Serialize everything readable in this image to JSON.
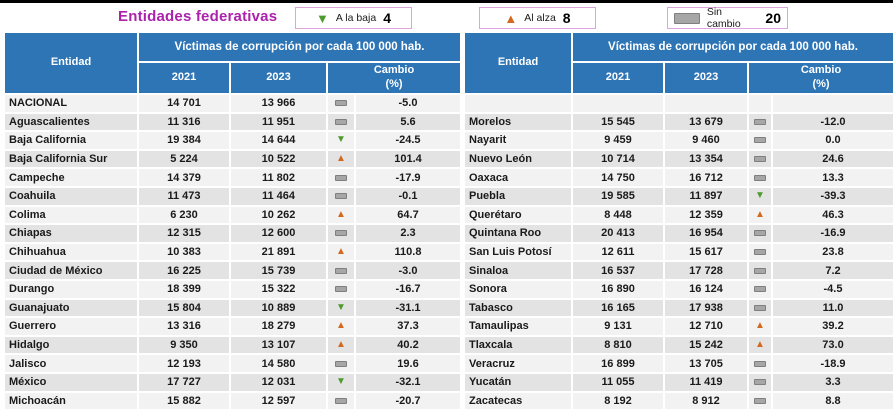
{
  "page": {
    "title": "Entidades federativas"
  },
  "legend": [
    {
      "name": "a-la-baja",
      "label": "A la baja",
      "count": "4",
      "icon": "down-triangle-icon",
      "color": "#4E9B2D"
    },
    {
      "name": "al-alza",
      "label": "Al alza",
      "count": "8",
      "icon": "up-triangle-icon",
      "color": "#D2691E"
    },
    {
      "name": "sin-cambio",
      "label": "Sin cambio",
      "count": "20",
      "icon": "gray-bar-icon",
      "color": "#A6A6A6"
    }
  ],
  "table_header": {
    "entity": "Entidad",
    "group": "Víctimas de corrupción por cada 100 000 hab.",
    "col_2021": "2021",
    "col_2023": "2023",
    "col_change": "Cambio\n(%)"
  },
  "icons": {
    "down": "▼",
    "up": "▲"
  },
  "colors": {
    "header_blue": "#2E75B6",
    "title_magenta": "#AB22AB",
    "down_green": "#4E9B2D",
    "up_orange": "#D2691E",
    "nochange_gray": "#A6A6A6",
    "row_odd": "#F2F2F2",
    "row_even": "#E3E3E3",
    "legend_border": "#DCA6DC"
  },
  "chart_data": {
    "type": "table",
    "title": "Entidades federativas",
    "group_header": "Víctimas de corrupción por cada 100 000 hab.",
    "columns": [
      "Entidad",
      "2021",
      "2023",
      "Cambio (%)"
    ],
    "legend_counts": {
      "a_la_baja": 4,
      "al_alza": 8,
      "sin_cambio": 20
    },
    "left_rows": [
      {
        "entity": "NACIONAL",
        "y2021": "14 701",
        "y2023": "13 966",
        "trend": "same",
        "change": "-5.0"
      },
      {
        "entity": "Aguascalientes",
        "y2021": "11 316",
        "y2023": "11 951",
        "trend": "same",
        "change": "5.6"
      },
      {
        "entity": "Baja California",
        "y2021": "19 384",
        "y2023": "14 644",
        "trend": "down",
        "change": "-24.5"
      },
      {
        "entity": "Baja California Sur",
        "y2021": "5 224",
        "y2023": "10 522",
        "trend": "up",
        "change": "101.4"
      },
      {
        "entity": "Campeche",
        "y2021": "14 379",
        "y2023": "11 802",
        "trend": "same",
        "change": "-17.9"
      },
      {
        "entity": "Coahuila",
        "y2021": "11 473",
        "y2023": "11 464",
        "trend": "same",
        "change": "-0.1"
      },
      {
        "entity": "Colima",
        "y2021": "6 230",
        "y2023": "10 262",
        "trend": "up",
        "change": "64.7"
      },
      {
        "entity": "Chiapas",
        "y2021": "12 315",
        "y2023": "12 600",
        "trend": "same",
        "change": "2.3"
      },
      {
        "entity": "Chihuahua",
        "y2021": "10 383",
        "y2023": "21 891",
        "trend": "up",
        "change": "110.8"
      },
      {
        "entity": "Ciudad de México",
        "y2021": "16 225",
        "y2023": "15 739",
        "trend": "same",
        "change": "-3.0"
      },
      {
        "entity": "Durango",
        "y2021": "18 399",
        "y2023": "15 322",
        "trend": "same",
        "change": "-16.7"
      },
      {
        "entity": "Guanajuato",
        "y2021": "15 804",
        "y2023": "10 889",
        "trend": "down",
        "change": "-31.1"
      },
      {
        "entity": "Guerrero",
        "y2021": "13 316",
        "y2023": "18 279",
        "trend": "up",
        "change": "37.3"
      },
      {
        "entity": "Hidalgo",
        "y2021": "9 350",
        "y2023": "13 107",
        "trend": "up",
        "change": "40.2"
      },
      {
        "entity": "Jalisco",
        "y2021": "12 193",
        "y2023": "14 580",
        "trend": "same",
        "change": "19.6"
      },
      {
        "entity": "México",
        "y2021": "17 727",
        "y2023": "12 031",
        "trend": "down",
        "change": "-32.1"
      },
      {
        "entity": "Michoacán",
        "y2021": "15 882",
        "y2023": "12 597",
        "trend": "same",
        "change": "-20.7"
      }
    ],
    "right_rows": [
      {
        "entity": "",
        "y2021": "",
        "y2023": "",
        "trend": "none",
        "change": ""
      },
      {
        "entity": "Morelos",
        "y2021": "15 545",
        "y2023": "13 679",
        "trend": "same",
        "change": "-12.0"
      },
      {
        "entity": "Nayarit",
        "y2021": "9 459",
        "y2023": "9 460",
        "trend": "same",
        "change": "0.0"
      },
      {
        "entity": "Nuevo León",
        "y2021": "10 714",
        "y2023": "13 354",
        "trend": "same",
        "change": "24.6"
      },
      {
        "entity": "Oaxaca",
        "y2021": "14 750",
        "y2023": "16 712",
        "trend": "same",
        "change": "13.3"
      },
      {
        "entity": "Puebla",
        "y2021": "19 585",
        "y2023": "11 897",
        "trend": "down",
        "change": "-39.3"
      },
      {
        "entity": "Querétaro",
        "y2021": "8 448",
        "y2023": "12 359",
        "trend": "up",
        "change": "46.3"
      },
      {
        "entity": "Quintana Roo",
        "y2021": "20 413",
        "y2023": "16 954",
        "trend": "same",
        "change": "-16.9"
      },
      {
        "entity": "San Luis Potosí",
        "y2021": "12 611",
        "y2023": "15 617",
        "trend": "same",
        "change": "23.8"
      },
      {
        "entity": "Sinaloa",
        "y2021": "16 537",
        "y2023": "17 728",
        "trend": "same",
        "change": "7.2"
      },
      {
        "entity": "Sonora",
        "y2021": "16 890",
        "y2023": "16 124",
        "trend": "same",
        "change": "-4.5"
      },
      {
        "entity": "Tabasco",
        "y2021": "16 165",
        "y2023": "17 938",
        "trend": "same",
        "change": "11.0"
      },
      {
        "entity": "Tamaulipas",
        "y2021": "9 131",
        "y2023": "12 710",
        "trend": "up",
        "change": "39.2"
      },
      {
        "entity": "Tlaxcala",
        "y2021": "8 810",
        "y2023": "15 242",
        "trend": "up",
        "change": "73.0"
      },
      {
        "entity": "Veracruz",
        "y2021": "16 899",
        "y2023": "13 705",
        "trend": "same",
        "change": "-18.9"
      },
      {
        "entity": "Yucatán",
        "y2021": "11 055",
        "y2023": "11 419",
        "trend": "same",
        "change": "3.3"
      },
      {
        "entity": "Zacatecas",
        "y2021": "8 192",
        "y2023": "8 912",
        "trend": "same",
        "change": "8.8"
      }
    ]
  }
}
